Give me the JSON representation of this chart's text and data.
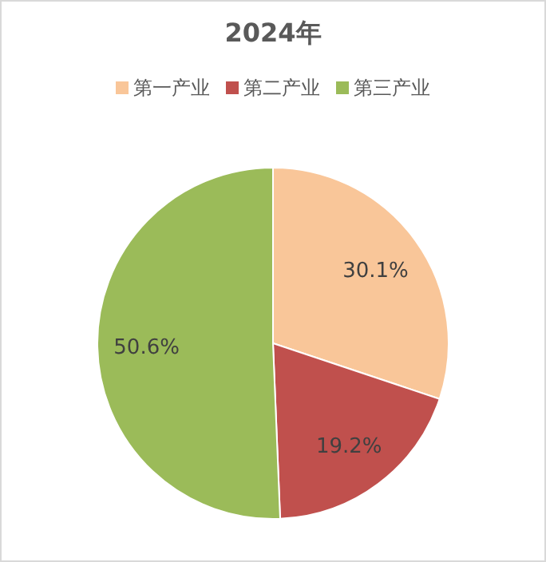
{
  "chart_data": {
    "type": "pie",
    "title": "2024年",
    "categories": [
      "第一产业",
      "第二产业",
      "第三产业"
    ],
    "values": [
      30.1,
      19.2,
      50.6
    ],
    "colors": [
      "#f9c699",
      "#c0504d",
      "#9bbb59"
    ],
    "value_labels": [
      "30.1%",
      "19.2%",
      "50.6%"
    ],
    "legend": "top"
  }
}
